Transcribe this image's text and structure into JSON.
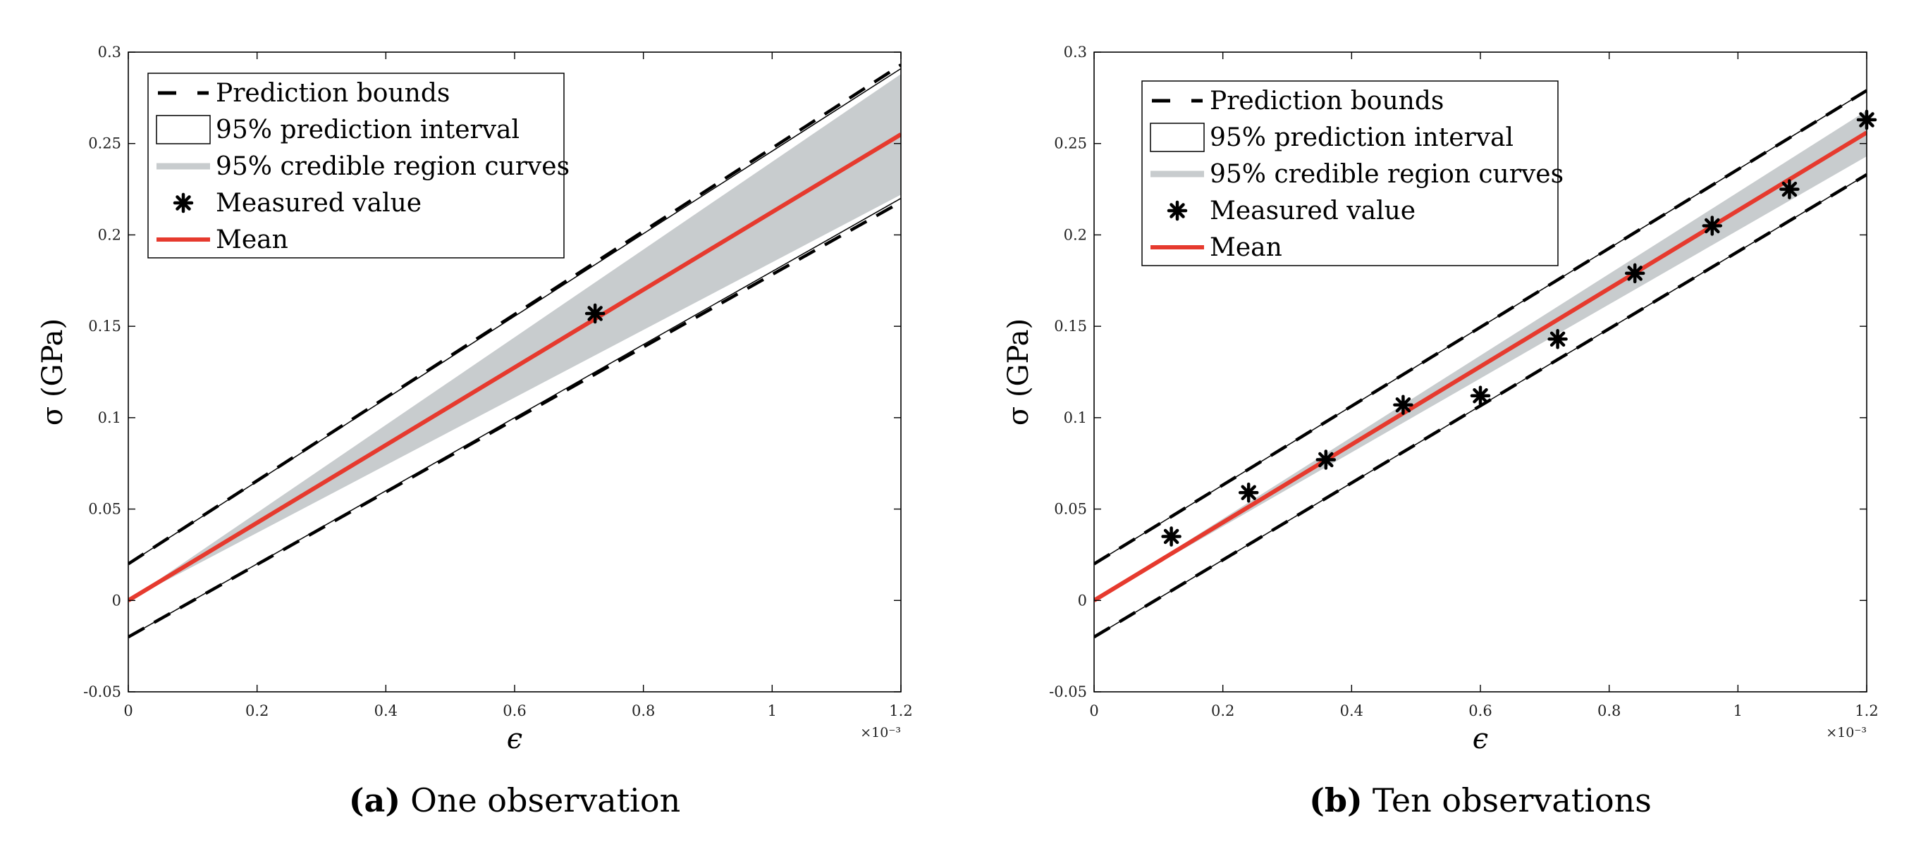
{
  "colors": {
    "mean": "#e63a2e",
    "band": "#c8ccce",
    "bounds": "#000000",
    "marker": "#000000"
  },
  "chart_data": [
    {
      "type": "line",
      "title": "",
      "caption_label": "(a)",
      "caption_text": "One observation",
      "xlabel": "ϵ",
      "ylabel": "σ (GPa)",
      "x_exponent_label": "×10⁻³",
      "xlim": [
        0,
        1.2
      ],
      "ylim": [
        -0.05,
        0.3
      ],
      "x_unit_scale": "1e-3",
      "xticks": [
        "0",
        "0.2",
        "0.4",
        "0.6",
        "0.8",
        "1",
        "1.2"
      ],
      "yticks": [
        "-0.05",
        "0",
        "0.05",
        "0.1",
        "0.15",
        "0.2",
        "0.25",
        "0.3"
      ],
      "legend_position": "top-left",
      "series": [
        {
          "name": "Prediction bounds",
          "kind": "dashed-lines",
          "upper": {
            "x": [
              0,
              1.2
            ],
            "y": [
              0.02,
              0.293
            ]
          },
          "lower": {
            "x": [
              0,
              1.2
            ],
            "y": [
              -0.02,
              0.218
            ]
          }
        },
        {
          "name": "95% prediction interval",
          "kind": "filled-white",
          "upper": {
            "x": [
              0,
              1.2
            ],
            "y": [
              0.02,
              0.291
            ]
          },
          "lower": {
            "x": [
              0,
              1.2
            ],
            "y": [
              -0.02,
              0.22
            ]
          }
        },
        {
          "name": "95% credible region curves",
          "kind": "band",
          "upper": {
            "x": [
              0,
              1.2
            ],
            "y": [
              0.0,
              0.288
            ]
          },
          "lower": {
            "x": [
              0,
              1.2
            ],
            "y": [
              0.0,
              0.222
            ]
          }
        },
        {
          "name": "Measured value",
          "kind": "markers",
          "x": [
            0.725
          ],
          "y": [
            0.157
          ]
        },
        {
          "name": "Mean",
          "kind": "line",
          "x": [
            0,
            1.2
          ],
          "y": [
            0.0,
            0.255
          ]
        }
      ]
    },
    {
      "type": "line",
      "title": "",
      "caption_label": "(b)",
      "caption_text": "Ten observations",
      "xlabel": "ϵ",
      "ylabel": "σ (GPa)",
      "x_exponent_label": "×10⁻³",
      "xlim": [
        0,
        1.2
      ],
      "ylim": [
        -0.05,
        0.3
      ],
      "x_unit_scale": "1e-3",
      "xticks": [
        "0",
        "0.2",
        "0.4",
        "0.6",
        "0.8",
        "1",
        "1.2"
      ],
      "yticks": [
        "-0.05",
        "0",
        "0.05",
        "0.1",
        "0.15",
        "0.2",
        "0.25",
        "0.3"
      ],
      "legend_position": "top-left",
      "series": [
        {
          "name": "Prediction bounds",
          "kind": "dashed-lines",
          "upper": {
            "x": [
              0,
              1.2
            ],
            "y": [
              0.02,
              0.279
            ]
          },
          "lower": {
            "x": [
              0,
              1.2
            ],
            "y": [
              -0.02,
              0.233
            ]
          }
        },
        {
          "name": "95% prediction interval",
          "kind": "filled-white",
          "upper": {
            "x": [
              0,
              1.2
            ],
            "y": [
              0.02,
              0.279
            ]
          },
          "lower": {
            "x": [
              0,
              1.2
            ],
            "y": [
              -0.02,
              0.233
            ]
          }
        },
        {
          "name": "95% credible region curves",
          "kind": "band",
          "upper": {
            "x": [
              0,
              1.2
            ],
            "y": [
              0.0,
              0.268
            ]
          },
          "lower": {
            "x": [
              0,
              1.2
            ],
            "y": [
              0.0,
              0.243
            ]
          }
        },
        {
          "name": "Measured value",
          "kind": "markers",
          "x": [
            0.12,
            0.24,
            0.36,
            0.48,
            0.6,
            0.72,
            0.84,
            0.96,
            1.08,
            1.2
          ],
          "y": [
            0.035,
            0.059,
            0.077,
            0.107,
            0.112,
            0.143,
            0.179,
            0.205,
            0.225,
            0.263
          ]
        },
        {
          "name": "Mean",
          "kind": "line",
          "x": [
            0,
            1.2
          ],
          "y": [
            0.0,
            0.256
          ]
        }
      ]
    }
  ]
}
